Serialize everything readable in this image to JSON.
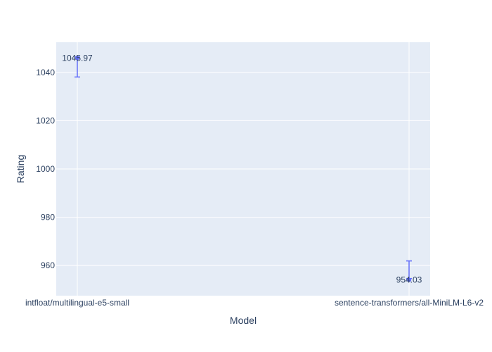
{
  "chart_data": {
    "type": "scatter",
    "xlabel": "Model",
    "ylabel": "Rating",
    "categories": [
      "intfloat/multilingual-e5-small",
      "sentence-transformers/all-MiniLM-L6-v2"
    ],
    "series": [
      {
        "values": [
          1045.97,
          954.03
        ],
        "labels": [
          "1045.97",
          "954.03"
        ],
        "error_upper": [
          1046.4,
          954.6
        ],
        "error_lower": [
          1038.1,
          961.9
        ]
      }
    ],
    "ylim": [
      947.5,
      1052.5
    ],
    "yticks": [
      960,
      980,
      1000,
      1020,
      1040
    ],
    "grid": true,
    "colors": {
      "marker": "#636efa",
      "plot_bg": "#e5ecf6",
      "grid": "#ffffff",
      "text": "#2a3f5f"
    }
  }
}
